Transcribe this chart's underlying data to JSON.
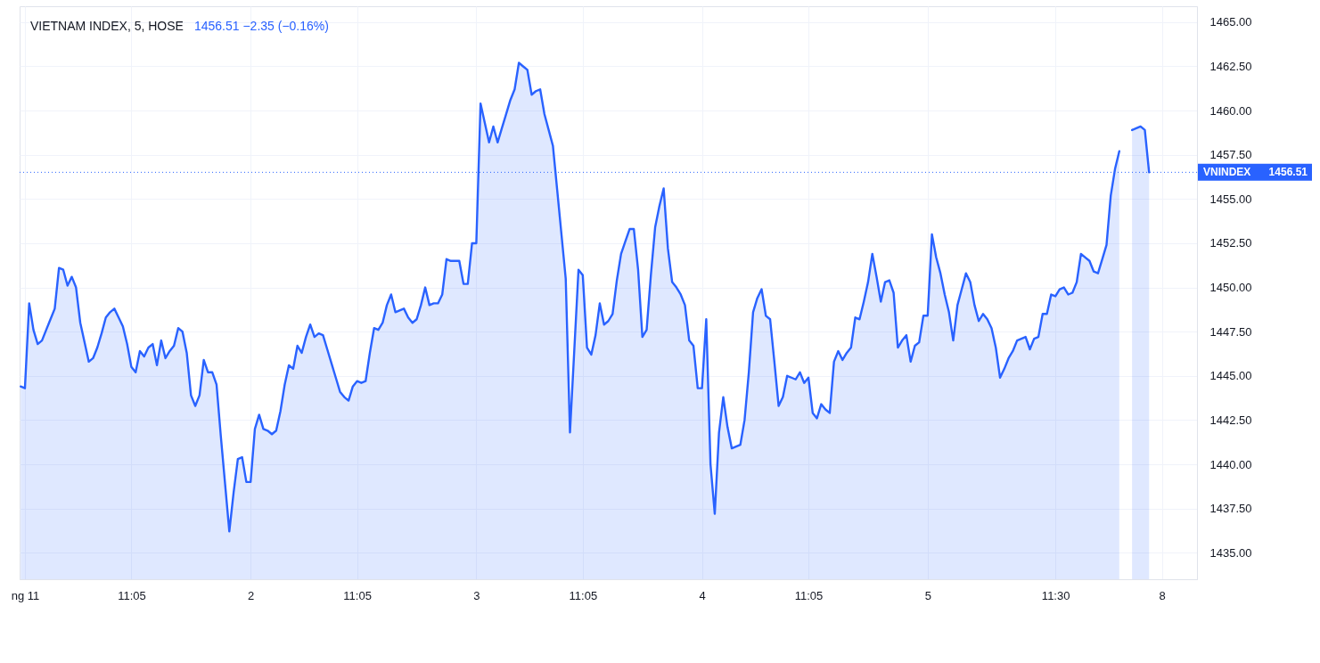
{
  "chart_data": {
    "type": "area",
    "title": "VIETNAM INDEX, 5, HOSE",
    "subtitle": "1456.51 −2.35 (−0.16%)",
    "categories": [
      null,
      "ng 11",
      null,
      null,
      null,
      null,
      null,
      null,
      null,
      null,
      null,
      null,
      null,
      null,
      null,
      null,
      null,
      null,
      null,
      null,
      null,
      null,
      null,
      null,
      null,
      null,
      "11:05",
      null,
      null,
      null,
      null,
      null,
      null,
      null,
      null,
      null,
      null,
      null,
      null,
      null,
      null,
      null,
      null,
      null,
      null,
      null,
      null,
      null,
      null,
      null,
      null,
      null,
      null,
      null,
      "2",
      null,
      null,
      null,
      null,
      null,
      null,
      null,
      null,
      null,
      null,
      null,
      null,
      null,
      null,
      null,
      null,
      null,
      null,
      null,
      null,
      null,
      null,
      null,
      null,
      "11:05",
      null,
      null,
      null,
      null,
      null,
      null,
      null,
      null,
      null,
      null,
      null,
      null,
      null,
      null,
      null,
      null,
      null,
      null,
      null,
      null,
      null,
      null,
      null,
      null,
      null,
      null,
      null,
      "3",
      null,
      null,
      null,
      null,
      null,
      null,
      null,
      null,
      null,
      null,
      null,
      null,
      null,
      null,
      null,
      null,
      null,
      null,
      null,
      null,
      null,
      null,
      null,
      null,
      "11:05",
      null,
      null,
      null,
      null,
      null,
      null,
      null,
      null,
      null,
      null,
      null,
      null,
      null,
      null,
      null,
      null,
      null,
      null,
      null,
      null,
      null,
      null,
      null,
      null,
      null,
      null,
      null,
      "4",
      null,
      null,
      null,
      null,
      null,
      null,
      null,
      null,
      null,
      null,
      null,
      null,
      null,
      null,
      null,
      null,
      null,
      null,
      null,
      null,
      null,
      null,
      null,
      null,
      "11:05",
      null,
      null,
      null,
      null,
      null,
      null,
      null,
      null,
      null,
      null,
      null,
      null,
      null,
      null,
      null,
      null,
      null,
      null,
      null,
      null,
      null,
      null,
      null,
      null,
      null,
      null,
      null,
      "5",
      null,
      null,
      null,
      null,
      null,
      null,
      null,
      null,
      null,
      null,
      null,
      null,
      null,
      null,
      null,
      null,
      null,
      null,
      null,
      null,
      null,
      null,
      null,
      null,
      null,
      null,
      null,
      null,
      null,
      "11:30",
      null,
      null,
      null,
      null,
      null,
      null,
      null,
      null,
      null,
      null,
      null,
      null,
      null,
      null,
      null,
      null,
      null,
      null,
      null,
      null,
      null,
      null,
      null,
      null,
      "8",
      null,
      null,
      null,
      null,
      null,
      null,
      null,
      null
    ],
    "series": [
      {
        "color": "#2962ff",
        "values": [
          1444.4,
          1444.3,
          1449.1,
          1447.6,
          1446.8,
          1447.0,
          1447.6,
          1448.2,
          1448.8,
          1451.1,
          1451.0,
          1450.1,
          1450.6,
          1450.0,
          1448.0,
          1446.9,
          1445.8,
          1446.0,
          1446.6,
          1447.4,
          1448.3,
          1448.6,
          1448.8,
          1448.3,
          1447.8,
          1446.8,
          1445.5,
          1445.2,
          1446.4,
          1446.1,
          1446.6,
          1446.8,
          1445.6,
          1447.0,
          1446.0,
          1446.4,
          1446.7,
          1447.7,
          1447.5,
          1446.3,
          1443.9,
          1443.3,
          1443.9,
          1445.9,
          1445.2,
          1445.2,
          1444.5,
          1441.6,
          1438.9,
          1436.2,
          1438.4,
          1440.3,
          1440.4,
          1439.0,
          1439.0,
          1442.0,
          1442.8,
          1442.0,
          1441.9,
          1441.7,
          1441.9,
          1443.0,
          1444.5,
          1445.6,
          1445.4,
          1446.7,
          1446.3,
          1447.2,
          1447.9,
          1447.2,
          1447.4,
          1447.3,
          1446.5,
          1445.7,
          1444.9,
          1444.1,
          1443.8,
          1443.6,
          1444.4,
          1444.7,
          1444.6,
          1444.7,
          1446.3,
          1447.7,
          1447.6,
          1448.0,
          1449.0,
          1449.6,
          1448.6,
          1448.7,
          1448.8,
          1448.3,
          1448.0,
          1448.2,
          1449.0,
          1450.0,
          1449.0,
          1449.1,
          1449.1,
          1449.6,
          1451.6,
          1451.5,
          1451.5,
          1451.5,
          1450.2,
          1450.2,
          1452.5,
          1452.5,
          1460.4,
          1459.3,
          1458.2,
          1459.1,
          1458.2,
          1459.0,
          1459.8,
          1460.6,
          1461.2,
          1462.7,
          1462.5,
          1462.3,
          1460.9,
          1461.1,
          1461.2,
          1459.8,
          1458.9,
          1458.0,
          1455.5,
          1453.0,
          1450.5,
          1441.8,
          1446.4,
          1451.0,
          1450.7,
          1446.6,
          1446.2,
          1447.3,
          1449.1,
          1447.9,
          1448.1,
          1448.5,
          1450.4,
          1451.9,
          1452.6,
          1453.3,
          1453.3,
          1451.0,
          1447.2,
          1447.6,
          1450.7,
          1453.4,
          1454.6,
          1455.6,
          1452.2,
          1450.3,
          1450.0,
          1449.6,
          1449.0,
          1447.0,
          1446.7,
          1444.3,
          1444.3,
          1448.2,
          1440.0,
          1437.2,
          1441.8,
          1443.8,
          1442.1,
          1440.9,
          1441.0,
          1441.1,
          1442.5,
          1445.2,
          1448.6,
          1449.4,
          1449.9,
          1448.4,
          1448.2,
          1445.8,
          1443.3,
          1443.8,
          1445.0,
          1444.9,
          1444.8,
          1445.2,
          1444.6,
          1444.9,
          1442.9,
          1442.6,
          1443.4,
          1443.1,
          1442.9,
          1445.8,
          1446.4,
          1445.9,
          1446.3,
          1446.6,
          1448.3,
          1448.2,
          1449.2,
          1450.3,
          1451.9,
          1450.6,
          1449.2,
          1450.3,
          1450.4,
          1449.7,
          1446.6,
          1447.0,
          1447.3,
          1445.8,
          1446.7,
          1446.9,
          1448.4,
          1448.4,
          1453.0,
          1451.7,
          1450.8,
          1449.6,
          1448.6,
          1447.0,
          1449.0,
          1449.9,
          1450.8,
          1450.3,
          1449.0,
          1448.1,
          1448.5,
          1448.2,
          1447.7,
          1446.6,
          1444.9,
          1445.4,
          1446.0,
          1446.4,
          1447.0,
          1447.1,
          1447.2,
          1446.5,
          1447.1,
          1447.2,
          1448.5,
          1448.5,
          1449.6,
          1449.5,
          1449.9,
          1450.0,
          1449.6,
          1449.7,
          1450.3,
          1451.9,
          1451.7,
          1451.5,
          1450.9,
          1450.8,
          1451.6,
          1452.4,
          1455.2,
          1456.7,
          1457.7,
          null,
          null,
          1458.9,
          1459.0,
          1459.1,
          1458.9,
          1456.51,
          null,
          null,
          null,
          null,
          null,
          null,
          null,
          null,
          null,
          null,
          null
        ]
      }
    ],
    "ylim": [
      1433.5,
      1465.9
    ],
    "yticks": [
      {
        "value": 1435,
        "label": "1435.00"
      },
      {
        "value": 1437.5,
        "label": "1437.50"
      },
      {
        "value": 1440,
        "label": "1440.00"
      },
      {
        "value": 1442.5,
        "label": "1442.50"
      },
      {
        "value": 1445,
        "label": "1445.00"
      },
      {
        "value": 1447.5,
        "label": "1447.50"
      },
      {
        "value": 1450,
        "label": "1450.00"
      },
      {
        "value": 1452.5,
        "label": "1452.50"
      },
      {
        "value": 1455,
        "label": "1455.00"
      },
      {
        "value": 1457.5,
        "label": "1457.50"
      },
      {
        "value": 1460,
        "label": "1460.00"
      },
      {
        "value": 1462.5,
        "label": "1462.50"
      },
      {
        "value": 1465,
        "label": "1465.00"
      }
    ],
    "grid": true,
    "ref_lines": [
      {
        "axis": "y",
        "value": 1456.51,
        "label": "VNINDEX",
        "color": "#2962ff",
        "line_style": "dotted"
      }
    ],
    "annotations": [
      "1456.51"
    ]
  }
}
